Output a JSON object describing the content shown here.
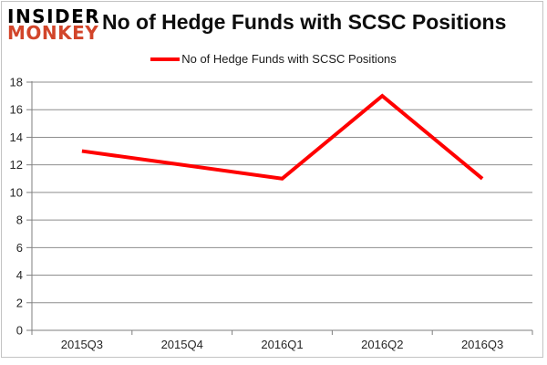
{
  "logo": {
    "line1": "INSIDER",
    "line2": "MONKEY",
    "line1_color": "#000000",
    "line2_color": "#d2452a"
  },
  "header": {
    "title": "No of Hedge Funds with SCSC Positions"
  },
  "legend": {
    "label": "No of Hedge Funds with SCSC Positions",
    "swatch_color": "#ff0000"
  },
  "chart_data": {
    "type": "line",
    "title": "No of Hedge Funds with SCSC Positions",
    "categories": [
      "2015Q3",
      "2015Q4",
      "2016Q1",
      "2016Q2",
      "2016Q3"
    ],
    "series": [
      {
        "name": "No of Hedge Funds with SCSC Positions",
        "values": [
          13,
          12,
          11,
          17,
          11
        ],
        "color": "#ff0000"
      }
    ],
    "xlabel": "",
    "ylabel": "",
    "ylim": [
      0,
      18
    ],
    "ytick_step": 2,
    "grid": true,
    "legend_position": "top",
    "grid_color": "#8e8e8e",
    "axis_color": "#7f7f7f",
    "label_color": "#262626"
  }
}
